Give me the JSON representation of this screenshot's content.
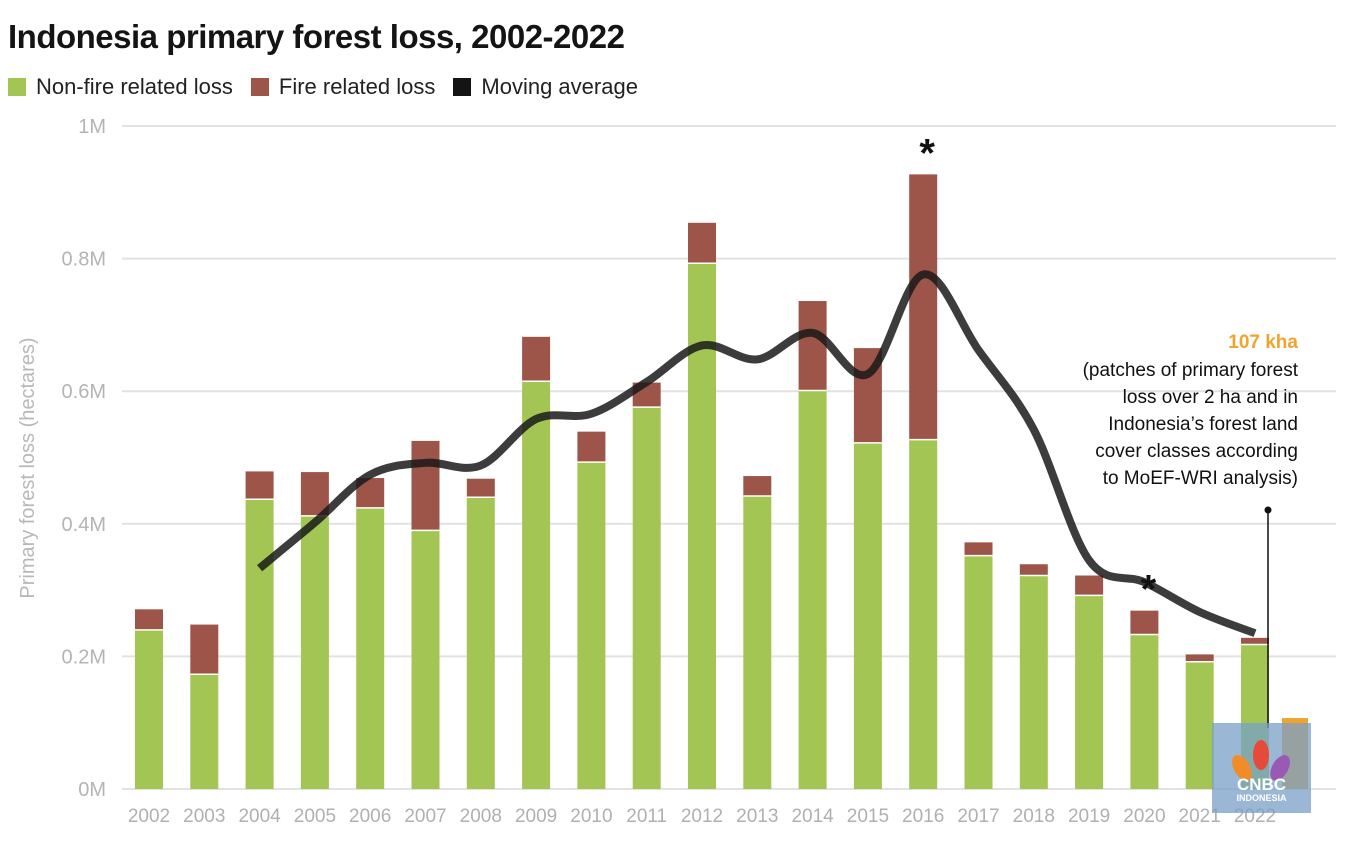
{
  "title": "Indonesia primary forest loss, 2002-2022",
  "legend": [
    {
      "label": "Non-fire related loss",
      "color": "#a2c554"
    },
    {
      "label": "Fire related loss",
      "color": "#9c5548"
    },
    {
      "label": "Moving average",
      "color": "#141414"
    }
  ],
  "chart_data": {
    "type": "bar",
    "stacked": true,
    "title": "Indonesia primary forest loss, 2002-2022",
    "xlabel": "",
    "ylabel": "Primary forest loss (hectares)",
    "ylim": [
      0,
      1000000
    ],
    "yticks": [
      {
        "value": 0,
        "label": "0M"
      },
      {
        "value": 200000,
        "label": "0.2M"
      },
      {
        "value": 400000,
        "label": "0.4M"
      },
      {
        "value": 600000,
        "label": "0.6M"
      },
      {
        "value": 800000,
        "label": "0.8M"
      },
      {
        "value": 1000000,
        "label": "1M"
      }
    ],
    "grid": true,
    "legend_position": "top-left",
    "categories": [
      "2002",
      "2003",
      "2004",
      "2005",
      "2006",
      "2007",
      "2008",
      "2009",
      "2010",
      "2011",
      "2012",
      "2013",
      "2014",
      "2015",
      "2016",
      "2017",
      "2018",
      "2019",
      "2020",
      "2021",
      "2022"
    ],
    "series": [
      {
        "name": "Non-fire related loss",
        "color": "#a2c554",
        "values": [
          240000,
          173000,
          437000,
          412000,
          424000,
          390000,
          440000,
          615000,
          493000,
          576000,
          793000,
          442000,
          601000,
          522000,
          527000,
          352000,
          322000,
          292000,
          233000,
          192000,
          218000
        ]
      },
      {
        "name": "Fire related loss",
        "color": "#9c5548",
        "values": [
          31000,
          75000,
          42000,
          66000,
          45000,
          135000,
          28000,
          67000,
          46000,
          37000,
          61000,
          30000,
          135000,
          143000,
          400000,
          20000,
          17000,
          30000,
          36000,
          11000,
          10000
        ]
      },
      {
        "name": "Moving average",
        "type": "line",
        "color": "#141414",
        "x": [
          "2004",
          "2005",
          "2006",
          "2007",
          "2008",
          "2009",
          "2010",
          "2011",
          "2012",
          "2013",
          "2014",
          "2015",
          "2016",
          "2017",
          "2018",
          "2019",
          "2020",
          "2021",
          "2022"
        ],
        "values": [
          333000,
          402000,
          474000,
          492000,
          488000,
          558000,
          566000,
          614000,
          669000,
          648000,
          688000,
          626000,
          776000,
          662000,
          542000,
          345000,
          312000,
          267000,
          235000
        ]
      }
    ],
    "highlight": {
      "category": "2022",
      "label": "107 kha",
      "value": 107000,
      "color": "#f2a32d"
    },
    "annotation": {
      "category": "2022",
      "label": "107 kha",
      "lines": [
        "(patches of primary forest",
        "loss over 2 ha and in",
        "Indonesia’s forest land",
        "cover classes according",
        "to MoEF-WRI analysis)"
      ]
    },
    "markers": [
      {
        "category": "2016",
        "symbol": "*"
      },
      {
        "category": "2020",
        "symbol": "*"
      }
    ]
  },
  "logo": {
    "name": "CNBC",
    "sub": "INDONESIA"
  }
}
